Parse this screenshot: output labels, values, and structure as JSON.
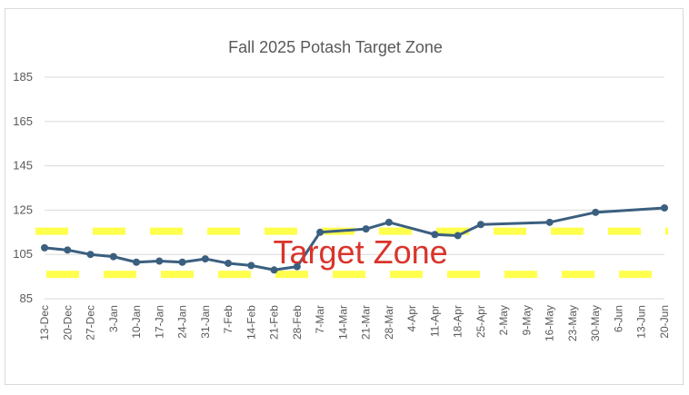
{
  "chart_data": {
    "type": "line",
    "title": "Fall 2025 Potash Target Zone",
    "xlabel": "",
    "ylabel": "",
    "ylim": [
      85,
      185
    ],
    "yticks": [
      85,
      105,
      125,
      145,
      165,
      185
    ],
    "grid": true,
    "legend": "none",
    "categories": [
      "13-Dec",
      "20-Dec",
      "27-Dec",
      "3-Jan",
      "10-Jan",
      "17-Jan",
      "24-Jan",
      "31-Jan",
      "7-Feb",
      "14-Feb",
      "21-Feb",
      "28-Feb",
      "7-Mar",
      "14-Mar",
      "21-Mar",
      "28-Mar",
      "4-Apr",
      "11-Apr",
      "18-Apr",
      "25-Apr",
      "2-May",
      "9-May",
      "16-May",
      "23-May",
      "30-May",
      "6-Jun",
      "13-Jun",
      "20-Jun"
    ],
    "series": [
      {
        "color": "#3b5f7f",
        "values": [
          108,
          107,
          105,
          104,
          101.5,
          102,
          101.5,
          103,
          101,
          100,
          98,
          99.5,
          115,
          null,
          116.5,
          119.5,
          null,
          114,
          113.5,
          118.5,
          null,
          null,
          119.5,
          null,
          124,
          null,
          null,
          126
        ]
      }
    ],
    "band": {
      "low": 96,
      "high": 115.5,
      "color": "#ffff4d"
    },
    "annotation": {
      "text": "Target Zone",
      "color": "#d9342b",
      "x_category": "21-Feb",
      "y": 106
    }
  }
}
